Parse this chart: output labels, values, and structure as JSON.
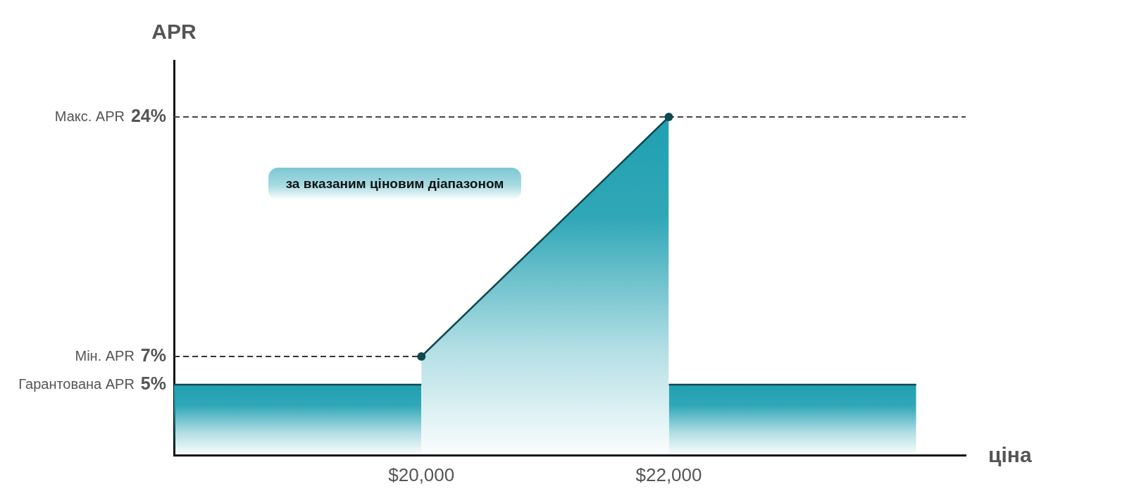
{
  "chart_data": {
    "type": "area",
    "xlabel": "ціна",
    "ylabel": "APR",
    "annotations": [
      "Макс. APR",
      "Мін. APR",
      "Гарантована APR",
      "за вказаним ціновим діапазоном"
    ],
    "xlim": [
      18000,
      24400
    ],
    "xticks": [
      {
        "value": 20000,
        "label": "$20,000"
      },
      {
        "value": 22000,
        "label": "$22,000"
      }
    ],
    "ylim": [
      0,
      28
    ],
    "yticks": [
      {
        "value": 5,
        "label": "5%"
      },
      {
        "value": 7,
        "label": "7%"
      },
      {
        "value": 24,
        "label": "24%"
      }
    ],
    "series": [
      {
        "color": "#1fa0b1",
        "x": [
          18000,
          20000
        ],
        "values": [
          5,
          5
        ]
      },
      {
        "color": "#1fa0b1",
        "x": [
          20000,
          22000
        ],
        "values": [
          7,
          24
        ],
        "marker": "circle"
      },
      {
        "color": "#1fa0b1",
        "x": [
          22000,
          24000
        ],
        "values": [
          5,
          5
        ]
      },
      {
        "type": "line",
        "color": "#333333",
        "x": [
          18000,
          20000
        ],
        "values": [
          7,
          7
        ],
        "line_style": "dashed"
      }
    ],
    "ref_lines": [
      {
        "axis": "y",
        "value": 24,
        "color": "#444444",
        "line_style": "dashed"
      }
    ],
    "grid": false,
    "legend": false,
    "marker": "none"
  }
}
